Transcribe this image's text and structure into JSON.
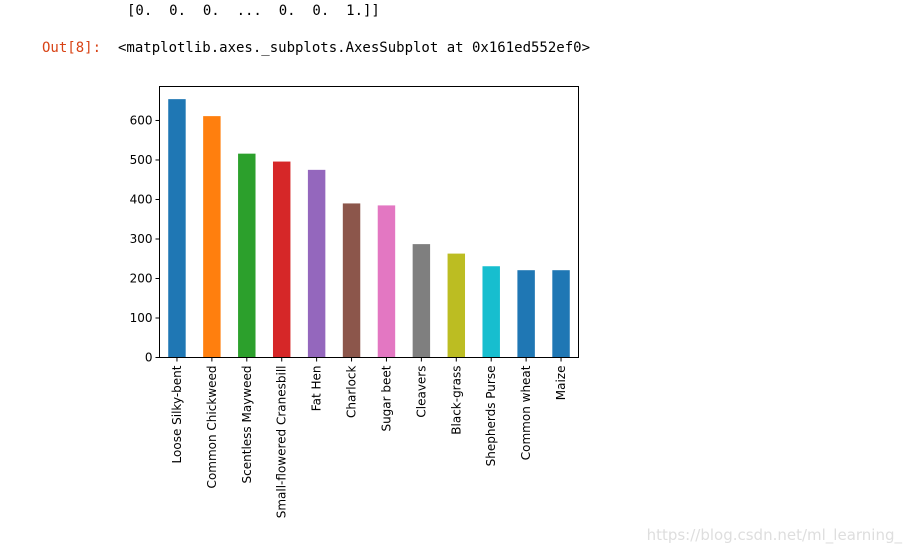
{
  "notebook": {
    "array_output": "[0.  0.  0.  ...  0.  0.  1.]]",
    "out_prompt": "Out[8]:",
    "repr_output": "<matplotlib.axes._subplots.AxesSubplot at 0x161ed552ef0>"
  },
  "watermark": "https://blog.csdn.net/ml_learning_",
  "chart_data": {
    "type": "bar",
    "categories": [
      "Loose Silky-bent",
      "Common Chickweed",
      "Scentless Mayweed",
      "Small-flowered Cranesbill",
      "Fat Hen",
      "Charlock",
      "Sugar beet",
      "Cleavers",
      "Black-grass",
      "Shepherds Purse",
      "Common wheat",
      "Maize"
    ],
    "values": [
      654,
      611,
      516,
      496,
      475,
      390,
      385,
      287,
      263,
      231,
      221,
      221
    ],
    "colors": [
      "#1f77b4",
      "#ff7f0e",
      "#2ca02c",
      "#d62728",
      "#9467bd",
      "#8c564b",
      "#e377c2",
      "#7f7f7f",
      "#bcbd22",
      "#17becf",
      "#1f77b4",
      "#1f77b4"
    ],
    "yticks": [
      0,
      100,
      200,
      300,
      400,
      500,
      600
    ],
    "ylim": [
      0,
      686
    ],
    "title": "",
    "xlabel": "",
    "ylabel": "",
    "grid": false,
    "legend": false
  }
}
